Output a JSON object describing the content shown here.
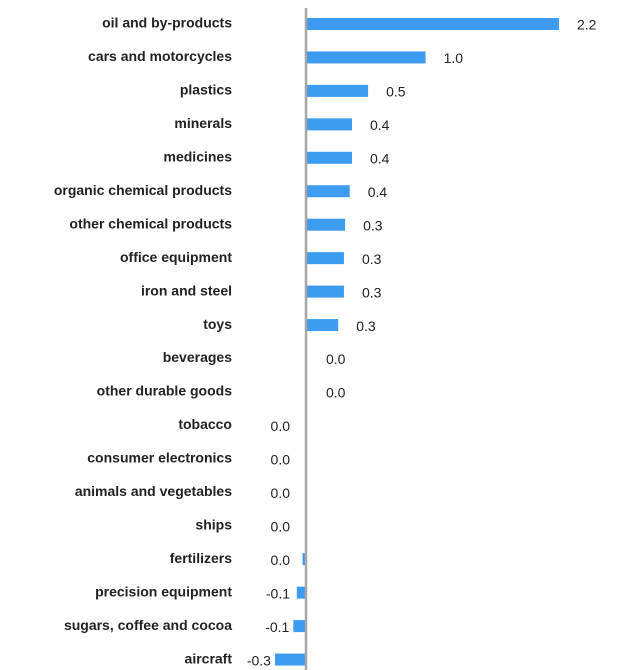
{
  "chart_data": {
    "type": "barh",
    "color": "#3d9bf0",
    "categories": [
      "oil and by-products",
      "cars and motorcycles",
      "plastics",
      "minerals",
      "medicines",
      "organic chemical products",
      "other chemical products",
      "office equipment",
      "iron and steel",
      "toys",
      "beverages",
      "other durable goods",
      "tobacco",
      "consumer electronics",
      "animals and vegetables",
      "ships",
      "fertilizers",
      "precision equipment",
      "sugars, coffee and cocoa",
      "aircraft"
    ],
    "values": [
      2.2,
      1.04,
      0.54,
      0.4,
      0.4,
      0.38,
      0.34,
      0.33,
      0.33,
      0.28,
      0.0,
      0.0,
      -0.004,
      -0.004,
      -0.004,
      -0.004,
      -0.03,
      -0.08,
      -0.11,
      -0.27
    ],
    "value_labels": [
      "2.2",
      "1.0",
      "0.5",
      "0.4",
      "0.4",
      "0.4",
      "0.3",
      "0.3",
      "0.3",
      "0.3",
      "0.0",
      "0.0",
      "0.0",
      "0.0",
      "0.0",
      "0.0",
      "0.0",
      "-0.1",
      "-0.1",
      "-0.3"
    ]
  }
}
